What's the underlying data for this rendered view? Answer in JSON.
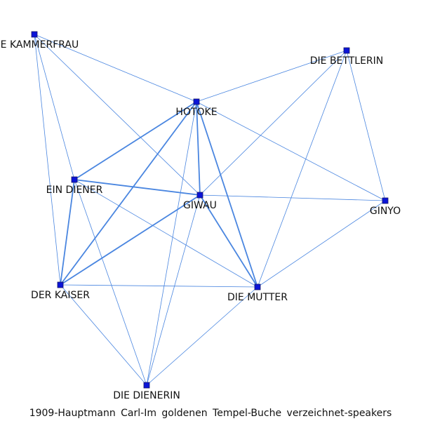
{
  "caption": "1909-Hauptmann Carl-Im goldenen Tempel-Buche verzeichnet-speakers",
  "colors": {
    "edge": "#4a86e0",
    "node": "#0a14d8"
  },
  "nodes": [
    {
      "id": "kammerfrau",
      "label": "DIE KAMMERFRAU"
    },
    {
      "id": "bettlerin",
      "label": "DIE BETTLERIN"
    },
    {
      "id": "hotoke",
      "label": "HOTOKE"
    },
    {
      "id": "diener",
      "label": "EIN DIENER"
    },
    {
      "id": "giwau",
      "label": "GIWAU"
    },
    {
      "id": "ginyo",
      "label": "GINYO"
    },
    {
      "id": "kaiser",
      "label": "DER KAISER"
    },
    {
      "id": "mutter",
      "label": "DIE MUTTER"
    },
    {
      "id": "dienerin",
      "label": "DIE DIENERIN"
    }
  ],
  "edges": [
    {
      "source": "kammerfrau",
      "target": "hotoke",
      "weight": 1
    },
    {
      "source": "kammerfrau",
      "target": "diener",
      "weight": 1
    },
    {
      "source": "kammerfrau",
      "target": "giwau",
      "weight": 1
    },
    {
      "source": "kammerfrau",
      "target": "kaiser",
      "weight": 1
    },
    {
      "source": "bettlerin",
      "target": "hotoke",
      "weight": 1
    },
    {
      "source": "bettlerin",
      "target": "giwau",
      "weight": 1
    },
    {
      "source": "bettlerin",
      "target": "ginyo",
      "weight": 1
    },
    {
      "source": "bettlerin",
      "target": "mutter",
      "weight": 1
    },
    {
      "source": "hotoke",
      "target": "diener",
      "weight": 2
    },
    {
      "source": "hotoke",
      "target": "giwau",
      "weight": 3
    },
    {
      "source": "hotoke",
      "target": "kaiser",
      "weight": 2
    },
    {
      "source": "hotoke",
      "target": "mutter",
      "weight": 2
    },
    {
      "source": "hotoke",
      "target": "ginyo",
      "weight": 1
    },
    {
      "source": "hotoke",
      "target": "dienerin",
      "weight": 1
    },
    {
      "source": "diener",
      "target": "giwau",
      "weight": 2
    },
    {
      "source": "diener",
      "target": "kaiser",
      "weight": 2
    },
    {
      "source": "diener",
      "target": "mutter",
      "weight": 1
    },
    {
      "source": "diener",
      "target": "dienerin",
      "weight": 1
    },
    {
      "source": "giwau",
      "target": "ginyo",
      "weight": 1
    },
    {
      "source": "giwau",
      "target": "kaiser",
      "weight": 2
    },
    {
      "source": "giwau",
      "target": "mutter",
      "weight": 2
    },
    {
      "source": "giwau",
      "target": "dienerin",
      "weight": 1
    },
    {
      "source": "ginyo",
      "target": "mutter",
      "weight": 1
    },
    {
      "source": "kaiser",
      "target": "mutter",
      "weight": 1
    },
    {
      "source": "kaiser",
      "target": "dienerin",
      "weight": 1
    },
    {
      "source": "mutter",
      "target": "dienerin",
      "weight": 1
    }
  ]
}
